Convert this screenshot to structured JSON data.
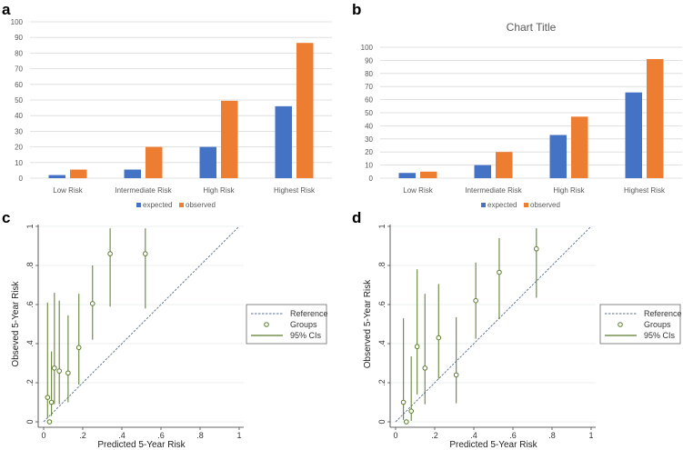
{
  "colors": {
    "expected": "#4472C4",
    "observed": "#ED7D31",
    "grid": "#D9D9D9",
    "point": "#5B7A2A",
    "ci": "#5B7A2A",
    "reference": "#5A6E8A"
  },
  "chart_data": [
    {
      "panel": "a",
      "type": "bar",
      "title": "",
      "categories": [
        "Low Risk",
        "Intermediate Risk",
        "High Risk",
        "Highest Risk"
      ],
      "series": [
        {
          "name": "expected",
          "values": [
            2,
            5.5,
            20,
            46
          ]
        },
        {
          "name": "observed",
          "values": [
            5.5,
            20,
            49.5,
            86.5
          ]
        }
      ],
      "ylim": [
        0,
        100
      ],
      "yticks": [
        0,
        10,
        20,
        30,
        40,
        50,
        60,
        70,
        80,
        90,
        100
      ],
      "legend": "bottom",
      "grid": true
    },
    {
      "panel": "b",
      "type": "bar",
      "title": "Chart Title",
      "categories": [
        "Low Risk",
        "Intermediate Risk",
        "High Risk",
        "Highest Risk"
      ],
      "series": [
        {
          "name": "expected",
          "values": [
            4,
            10,
            33,
            65.5
          ]
        },
        {
          "name": "observed",
          "values": [
            5,
            20,
            47,
            91
          ]
        }
      ],
      "ylim": [
        0,
        100
      ],
      "yticks": [
        0,
        10,
        20,
        30,
        40,
        50,
        60,
        70,
        80,
        90,
        100
      ],
      "legend": "bottom",
      "grid": true
    },
    {
      "panel": "c",
      "type": "scatter",
      "xlabel": "Predicted 5-Year Risk",
      "ylabel": "Obseved 5-Year Risk",
      "xlim": [
        0,
        1
      ],
      "ylim": [
        0,
        1
      ],
      "xticks": [
        0,
        0.2,
        0.4,
        0.6,
        0.8,
        1
      ],
      "xtick_labels": [
        "0",
        ".2",
        ".4",
        ".6",
        ".8",
        "1"
      ],
      "yticks": [
        0,
        0.2,
        0.4,
        0.6,
        0.8,
        1
      ],
      "ytick_labels": [
        "0",
        ".2",
        ".4",
        ".6",
        ".8",
        "1"
      ],
      "legend_entries": [
        "Reference",
        "Groups",
        "95% CIs"
      ],
      "legend": "right",
      "points": [
        {
          "x": 0.02,
          "y": 0.125,
          "lo": 0.02,
          "hi": 0.61
        },
        {
          "x": 0.03,
          "y": 0.0,
          "lo": 0.0,
          "hi": 0.0
        },
        {
          "x": 0.04,
          "y": 0.1,
          "lo": 0.03,
          "hi": 0.36
        },
        {
          "x": 0.055,
          "y": 0.275,
          "lo": 0.09,
          "hi": 0.66
        },
        {
          "x": 0.08,
          "y": 0.26,
          "lo": 0.09,
          "hi": 0.62
        },
        {
          "x": 0.125,
          "y": 0.25,
          "lo": 0.1,
          "hi": 0.545
        },
        {
          "x": 0.18,
          "y": 0.38,
          "lo": 0.19,
          "hi": 0.655
        },
        {
          "x": 0.25,
          "y": 0.605,
          "lo": 0.42,
          "hi": 0.8
        },
        {
          "x": 0.34,
          "y": 0.86,
          "lo": 0.59,
          "hi": 0.99
        },
        {
          "x": 0.52,
          "y": 0.86,
          "lo": 0.58,
          "hi": 0.99
        }
      ]
    },
    {
      "panel": "d",
      "type": "scatter",
      "xlabel": "Predicted 5-Year Risk",
      "ylabel": "Observed  5-Year Risk",
      "xlim": [
        0,
        1
      ],
      "ylim": [
        0,
        1
      ],
      "xticks": [
        0,
        0.2,
        0.4,
        0.6,
        0.8,
        1
      ],
      "xtick_labels": [
        "0",
        ".2",
        ".4",
        ".6",
        ".8",
        "1"
      ],
      "yticks": [
        0,
        0.2,
        0.4,
        0.6,
        0.8,
        1
      ],
      "ytick_labels": [
        "0",
        ".2",
        ".4",
        ".6",
        ".8",
        "1"
      ],
      "legend_entries": [
        "Reference",
        "Groups",
        "95% CIs"
      ],
      "legend": "right",
      "points": [
        {
          "x": 0.04,
          "y": 0.1,
          "lo": 0.01,
          "hi": 0.53
        },
        {
          "x": 0.055,
          "y": 0.0,
          "lo": 0.0,
          "hi": 0.0
        },
        {
          "x": 0.08,
          "y": 0.055,
          "lo": 0.005,
          "hi": 0.335
        },
        {
          "x": 0.11,
          "y": 0.385,
          "lo": 0.14,
          "hi": 0.78
        },
        {
          "x": 0.15,
          "y": 0.275,
          "lo": 0.09,
          "hi": 0.655
        },
        {
          "x": 0.22,
          "y": 0.43,
          "lo": 0.22,
          "hi": 0.705
        },
        {
          "x": 0.31,
          "y": 0.24,
          "lo": 0.095,
          "hi": 0.535
        },
        {
          "x": 0.41,
          "y": 0.62,
          "lo": 0.425,
          "hi": 0.815
        },
        {
          "x": 0.53,
          "y": 0.765,
          "lo": 0.525,
          "hi": 0.94
        },
        {
          "x": 0.72,
          "y": 0.885,
          "lo": 0.635,
          "hi": 0.99
        }
      ]
    }
  ]
}
